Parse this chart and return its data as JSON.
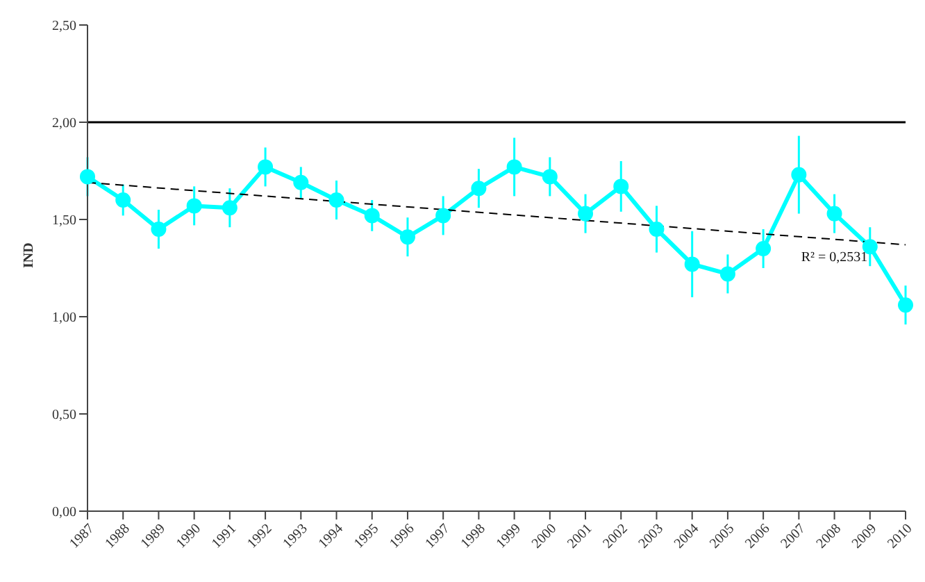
{
  "chart_data": {
    "type": "line",
    "ylabel": "IND",
    "categories": [
      "1987",
      "1988",
      "1989",
      "1990",
      "1991",
      "1992",
      "1993",
      "1994",
      "1995",
      "1996",
      "1997",
      "1998",
      "1999",
      "2000",
      "2001",
      "2002",
      "2003",
      "2004",
      "2005",
      "2006",
      "2007",
      "2008",
      "2009",
      "2010"
    ],
    "series": [
      {
        "color": "#00ffff",
        "marker": "circle",
        "values": [
          1.72,
          1.6,
          1.45,
          1.57,
          1.56,
          1.77,
          1.69,
          1.6,
          1.52,
          1.41,
          1.52,
          1.66,
          1.77,
          1.72,
          1.53,
          1.67,
          1.45,
          1.27,
          1.22,
          1.35,
          1.73,
          1.53,
          1.36,
          1.06
        ],
        "errors": [
          0.1,
          0.08,
          0.1,
          0.1,
          0.1,
          0.1,
          0.08,
          0.1,
          0.08,
          0.1,
          0.1,
          0.1,
          0.15,
          0.1,
          0.1,
          0.13,
          0.12,
          0.17,
          0.1,
          0.1,
          0.2,
          0.1,
          0.1,
          0.1
        ]
      },
      {
        "color": "#000000",
        "marker": "none",
        "line_style": "dashed",
        "values": [
          1.69,
          null,
          null,
          null,
          null,
          null,
          null,
          null,
          null,
          null,
          null,
          null,
          null,
          null,
          null,
          null,
          null,
          null,
          null,
          null,
          null,
          null,
          null,
          1.37
        ]
      }
    ],
    "ylim": [
      0,
      2.5
    ],
    "yticks": [
      {
        "value": 0,
        "label": "0,00"
      },
      {
        "value": 0.5,
        "label": "0,50"
      },
      {
        "value": 1,
        "label": "1,00"
      },
      {
        "value": 1.5,
        "label": "1,50"
      },
      {
        "value": 2,
        "label": "2,00"
      },
      {
        "value": 2.5,
        "label": "2,50"
      }
    ],
    "ref_lines": [
      {
        "axis": "y",
        "value": 2,
        "color": "#000000",
        "line_style": "solid"
      }
    ],
    "annotations": [
      {
        "text": "R² = 0,2531",
        "x": "2008",
        "y": 1.38
      }
    ],
    "grid": false,
    "legend": false
  }
}
